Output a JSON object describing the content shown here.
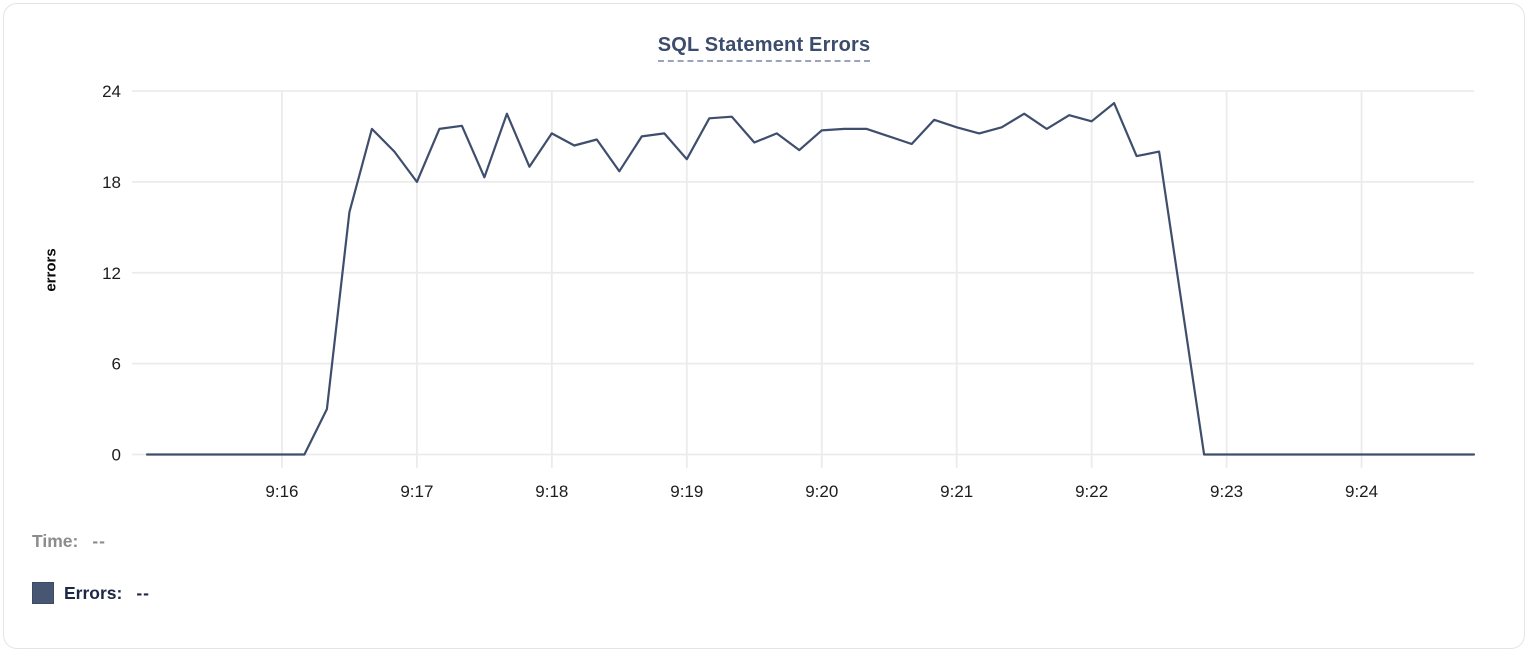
{
  "colors": {
    "line": "#3e4e6c",
    "title": "#3c4c6c",
    "grid": "#ebebeb",
    "axis_text": "#1d1d1f",
    "muted_text": "#8c8c8e",
    "navy_text": "#1c2846",
    "swatch": "#475673",
    "title_underline": "#9aa4bc",
    "card_border": "#e4e4e4"
  },
  "chart_data": {
    "type": "line",
    "title": "SQL Statement Errors",
    "xlabel": "",
    "ylabel": "errors",
    "ylim": [
      0,
      24
    ],
    "y_ticks": [
      0,
      6,
      12,
      18,
      24
    ],
    "x_tick_labels": [
      "9:16",
      "9:17",
      "9:18",
      "9:19",
      "9:20",
      "9:21",
      "9:22",
      "9:23",
      "9:24"
    ],
    "x_start": "9:15:00",
    "x_end": "9:24:50",
    "grid": true,
    "legend_position": "bottom-left",
    "series": [
      {
        "name": "Errors",
        "color": "#3e4e6c",
        "x": [
          "9:15:00",
          "9:15:10",
          "9:15:20",
          "9:15:30",
          "9:15:40",
          "9:15:50",
          "9:16:00",
          "9:16:10",
          "9:16:20",
          "9:16:30",
          "9:16:40",
          "9:16:50",
          "9:17:00",
          "9:17:10",
          "9:17:20",
          "9:17:30",
          "9:17:40",
          "9:17:50",
          "9:18:00",
          "9:18:10",
          "9:18:20",
          "9:18:30",
          "9:18:40",
          "9:18:50",
          "9:19:00",
          "9:19:10",
          "9:19:20",
          "9:19:30",
          "9:19:40",
          "9:19:50",
          "9:20:00",
          "9:20:10",
          "9:20:20",
          "9:20:30",
          "9:20:40",
          "9:20:50",
          "9:21:00",
          "9:21:10",
          "9:21:20",
          "9:21:30",
          "9:21:40",
          "9:21:50",
          "9:22:00",
          "9:22:10",
          "9:22:20",
          "9:22:30",
          "9:22:40",
          "9:22:50",
          "9:23:00",
          "9:23:10",
          "9:23:20",
          "9:23:30",
          "9:23:40",
          "9:23:50",
          "9:24:00",
          "9:24:10",
          "9:24:20",
          "9:24:30",
          "9:24:40",
          "9:24:50"
        ],
        "values": [
          0,
          0,
          0,
          0,
          0,
          0,
          0,
          0,
          3,
          16,
          21.5,
          20,
          18,
          21.5,
          21.7,
          18.3,
          22.5,
          19,
          21.2,
          20.4,
          20.8,
          18.7,
          21,
          21.2,
          19.5,
          22.2,
          22.3,
          20.6,
          21.2,
          20.1,
          21.4,
          21.5,
          21.5,
          21,
          20.5,
          22.1,
          21.6,
          21.2,
          21.6,
          22.5,
          21.5,
          22.4,
          22,
          23.2,
          19.7,
          20,
          10,
          0,
          0,
          0,
          0,
          0,
          0,
          0,
          0,
          0,
          0,
          0,
          0,
          0
        ]
      }
    ]
  },
  "tooltip_readout": {
    "time_label": "Time:",
    "time_value": "--",
    "series_label": "Errors:",
    "series_value": "--"
  }
}
